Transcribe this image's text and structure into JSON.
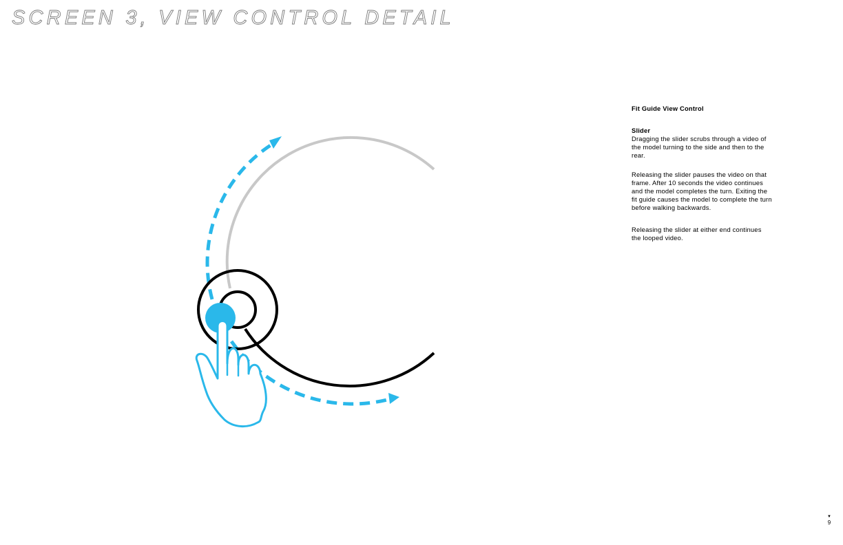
{
  "page": {
    "title": "SCREEN 3, VIEW CONTROL DETAIL",
    "number": "9",
    "marker_icon": "down-triangle-icon"
  },
  "notes": {
    "heading": "Fit Guide View Control",
    "section_title": "Slider",
    "paragraphs": [
      "Dragging the slider scrubs through a video of the model turning to the side and then to the rear.",
      "Releasing the slider pauses the video on that frame. After 10 seconds the video continues and the model completes the turn. Exiting the fit guide causes the model to complete the turn before walking backwards.",
      "Releasing the slider at either end continues the looped video."
    ]
  },
  "diagram": {
    "icons": [
      "slider-track-icon",
      "slider-knob-icon",
      "drag-arrow-icon",
      "touch-point-icon",
      "pointing-hand-icon"
    ],
    "colors": {
      "accent": "#2ab8ea",
      "track_inactive": "#c8c8c8",
      "track_active": "#000000"
    }
  }
}
